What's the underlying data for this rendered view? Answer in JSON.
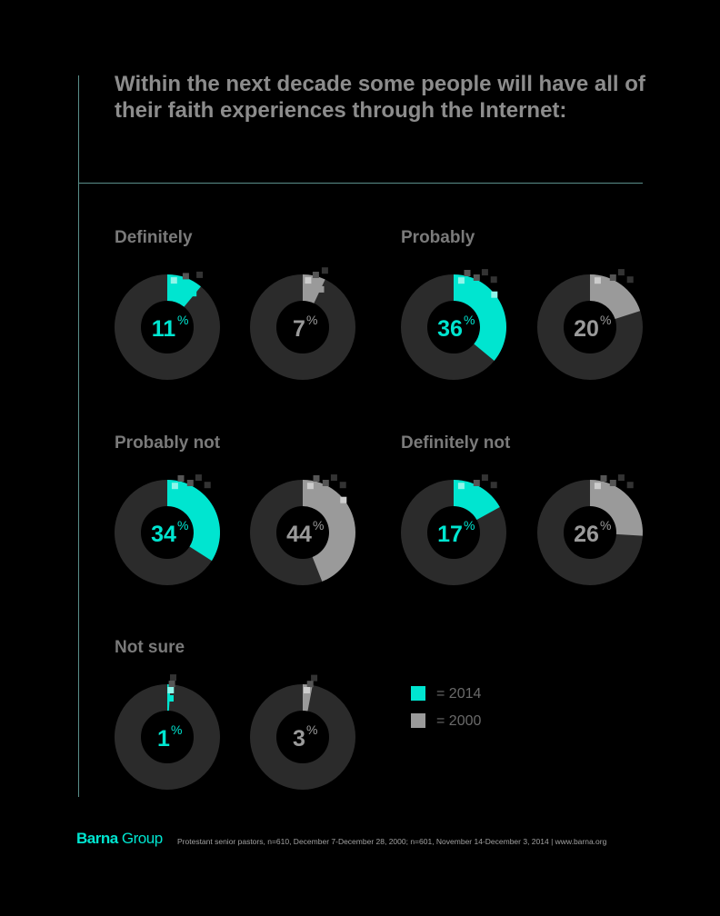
{
  "title": "Within the next decade some people will have all of their faith experiences through the Internet:",
  "colors": {
    "y2014": "#00e5d0",
    "y2000": "#9a9a9a",
    "ring": "#2b2b2b"
  },
  "chart_data": {
    "type": "pie",
    "title": "Within the next decade some people will have all of their faith experiences through the Internet:",
    "series_names": [
      "2014",
      "2000"
    ],
    "categories": [
      "Definitely",
      "Probably",
      "Probably not",
      "Definitely not",
      "Not sure"
    ],
    "series": [
      {
        "name": "2014",
        "values": [
          11,
          36,
          34,
          17,
          1
        ]
      },
      {
        "name": "2000",
        "values": [
          7,
          20,
          44,
          26,
          3
        ]
      }
    ],
    "unit": "%"
  },
  "legend": [
    {
      "label": "= 2014"
    },
    {
      "label": "= 2000"
    }
  ],
  "footer": {
    "brand_bold": "Barna",
    "brand_rest": " Group",
    "source": "Protestant senior pastors, n=610, December 7-December 28, 2000; n=601, November 14-December 3, 2014 | www.barna.org"
  }
}
